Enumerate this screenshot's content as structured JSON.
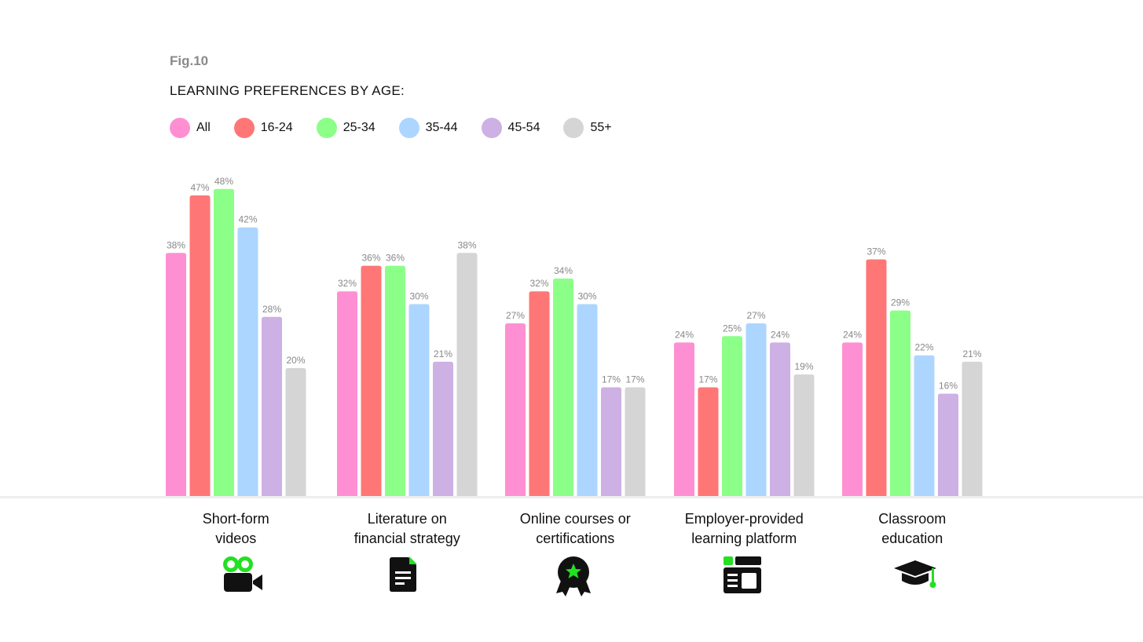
{
  "figure_label": "Fig.10",
  "chart_data": {
    "type": "bar",
    "title": "LEARNING PREFERENCES BY AGE:",
    "categories": [
      "Short-form\nvideos",
      "Literature on\nfinancial strategy",
      "Online courses or\ncertifications",
      "Employer-provided\nlearning platform",
      "Classroom\neducation"
    ],
    "series": [
      {
        "name": "All",
        "color": "#ff8fd3",
        "values": [
          38,
          32,
          27,
          24,
          24
        ]
      },
      {
        "name": "16-24",
        "color": "#ff7676",
        "values": [
          47,
          36,
          32,
          17,
          37
        ]
      },
      {
        "name": "25-34",
        "color": "#8cff88",
        "values": [
          48,
          36,
          34,
          25,
          29
        ]
      },
      {
        "name": "35-44",
        "color": "#acd6ff",
        "values": [
          42,
          30,
          30,
          27,
          22
        ]
      },
      {
        "name": "45-54",
        "color": "#cdb0e4",
        "values": [
          28,
          21,
          17,
          24,
          16
        ]
      },
      {
        "name": "55+",
        "color": "#d5d5d5",
        "values": [
          20,
          38,
          17,
          19,
          21
        ]
      }
    ],
    "value_suffix": "%",
    "ylim": [
      0,
      50
    ],
    "grid": false,
    "legend_position": "top-left",
    "category_icons": [
      "video-camera-icon",
      "document-icon",
      "award-badge-icon",
      "dashboard-layout-icon",
      "graduation-cap-icon"
    ],
    "colors": {
      "accent": "#22e022",
      "icon": "#111111",
      "value_label": "#888888",
      "baseline": "#eeeeee"
    }
  }
}
